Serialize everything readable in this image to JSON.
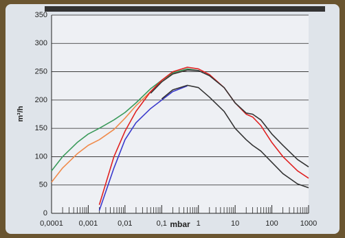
{
  "chart_data": {
    "type": "line",
    "x_label": "mbar",
    "y_label": "m³/h",
    "x": [
      0.0001,
      0.0002,
      0.0005,
      0.001,
      0.002,
      0.005,
      0.01,
      0.02,
      0.05,
      0.1,
      0.2,
      0.5,
      1,
      2,
      5,
      10,
      20,
      30,
      50,
      100,
      200,
      500,
      1000
    ],
    "series": [
      {
        "color": "#3a9a5a",
        "values": [
          75,
          100,
          125,
          140,
          150,
          165,
          178,
          195,
          220,
          235,
          248,
          255,
          252,
          null,
          null,
          null,
          null,
          null,
          null,
          null,
          null,
          null,
          null
        ]
      },
      {
        "color": "#f08a4a",
        "values": [
          55,
          80,
          105,
          120,
          130,
          148,
          168,
          190,
          215,
          232,
          246,
          253,
          null,
          null,
          null,
          null,
          null,
          null,
          null,
          null,
          null,
          null,
          null
        ]
      },
      {
        "color": "#3a3acc",
        "values": [
          null,
          null,
          null,
          null,
          5,
          80,
          130,
          160,
          185,
          200,
          215,
          225,
          null,
          null,
          null,
          null,
          null,
          null,
          null,
          null,
          null,
          null,
          null
        ]
      },
      {
        "color": "#e02020",
        "values": [
          null,
          null,
          null,
          null,
          15,
          100,
          145,
          180,
          215,
          235,
          250,
          258,
          255,
          245,
          222,
          195,
          175,
          170,
          155,
          125,
          100,
          75,
          62
        ]
      },
      {
        "color": "#333333",
        "values": [
          null,
          null,
          null,
          null,
          null,
          null,
          null,
          null,
          212,
          232,
          246,
          253,
          252,
          243,
          222,
          195,
          177,
          175,
          165,
          140,
          120,
          95,
          82
        ]
      },
      {
        "color": "#333333",
        "values": [
          null,
          null,
          null,
          null,
          null,
          null,
          null,
          null,
          null,
          202,
          218,
          226,
          222,
          205,
          180,
          150,
          130,
          120,
          110,
          90,
          70,
          52,
          45
        ]
      }
    ],
    "xlog": true,
    "xlim": [
      0.0001,
      1000
    ],
    "xticks": [
      {
        "value": 0.0001,
        "label": "0,0001"
      },
      {
        "value": 0.001,
        "label": "0,001"
      },
      {
        "value": 0.01,
        "label": "0,01"
      },
      {
        "value": 0.1,
        "label": "0,1"
      },
      1,
      10,
      100,
      1000
    ],
    "ylim": [
      0,
      350
    ],
    "yticks": [
      0,
      50,
      100,
      150,
      200,
      250,
      300,
      350
    ],
    "grid": true
  }
}
